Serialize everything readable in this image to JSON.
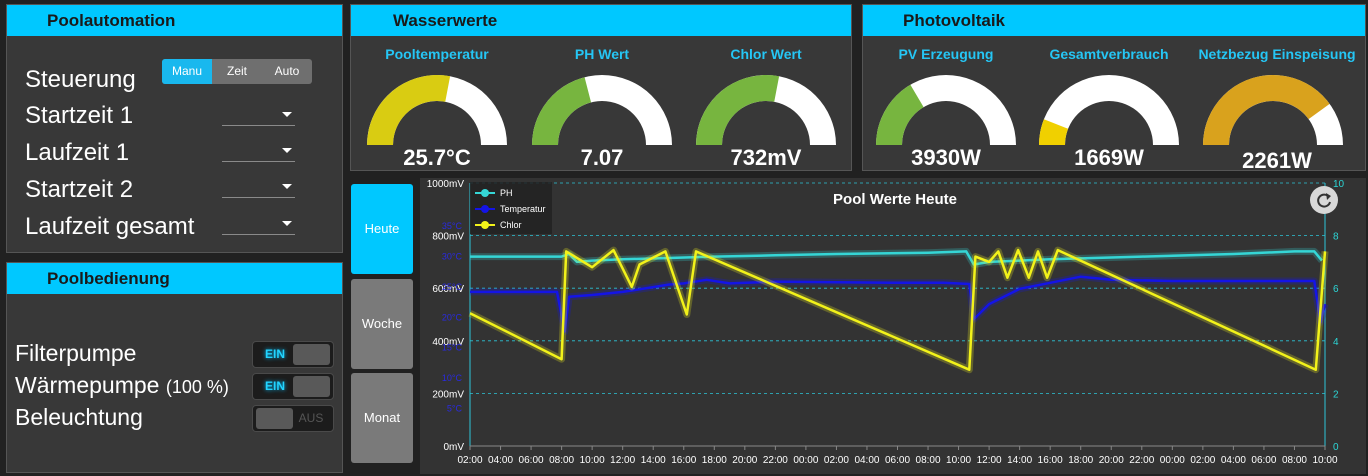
{
  "automation": {
    "title": "Poolautomation",
    "steuerung_label": "Steuerung",
    "modes": [
      "Manu",
      "Zeit",
      "Auto"
    ],
    "active_mode": "Manu",
    "rows": [
      {
        "label": "Startzeit 1",
        "value": ""
      },
      {
        "label": "Laufzeit 1",
        "value": ""
      },
      {
        "label": "Startzeit 2",
        "value": ""
      },
      {
        "label": "Laufzeit gesamt",
        "value": ""
      }
    ]
  },
  "bedienung": {
    "title": "Poolbedienung",
    "filter": {
      "label": "Filterpumpe",
      "state": "EIN"
    },
    "waerme": {
      "label": "Wärmepumpe",
      "extra": "(100 %)",
      "state": "EIN"
    },
    "licht": {
      "label": "Beleuchtung",
      "state": "AUS"
    }
  },
  "wasser": {
    "title": "Wasserwerte",
    "gauges": [
      {
        "title": "Pooltemperatur",
        "value": "25.7°C",
        "fill": 0.56,
        "color": "#d9cc12"
      },
      {
        "title": "PH Wert",
        "value": "7.07",
        "fill": 0.42,
        "color": "#77b53f"
      },
      {
        "title": "Chlor Wert",
        "value": "732mV",
        "fill": 0.56,
        "color": "#77b53f"
      }
    ]
  },
  "pv": {
    "title": "Photovoltaik",
    "gauges": [
      {
        "title": "PV Erzeugung",
        "value": "3930W",
        "fill": 0.33,
        "color": "#77b53f"
      },
      {
        "title": "Gesamtverbrauch",
        "value": "1669W",
        "fill": 0.12,
        "color": "#f0d000"
      },
      {
        "title": "Netzbezug Einspeisung",
        "value": "2261W",
        "fill": 0.8,
        "color": "#d9a21d"
      }
    ]
  },
  "periods": [
    "Heute",
    "Woche",
    "Monat"
  ],
  "active_period": "Heute",
  "icons": {
    "refresh": "refresh-icon",
    "caret": "caret-down-icon"
  },
  "chart_data": {
    "type": "line",
    "title": "Pool Werte Heute",
    "legend": [
      "PH",
      "Temperatur",
      "Chlor"
    ],
    "legend_position": "top-left",
    "colors": {
      "PH": "#35d6d6",
      "Temperatur": "#1414e6",
      "Chlor": "#f2f21a"
    },
    "x_ticks": [
      "02:00",
      "04:00",
      "06:00",
      "08:00",
      "10:00",
      "12:00",
      "14:00",
      "16:00",
      "18:00",
      "20:00",
      "22:00",
      "00:00",
      "02:00",
      "04:00",
      "06:00",
      "08:00",
      "10:00",
      "12:00",
      "14:00",
      "16:00",
      "18:00",
      "20:00",
      "22:00",
      "00:00",
      "02:00",
      "04:00",
      "06:00",
      "08:00",
      "10:00"
    ],
    "y_left_ticks": [
      "0mV",
      "200mV",
      "400mV",
      "600mV",
      "800mV",
      "1000mV"
    ],
    "y_left_range": [
      0,
      1000
    ],
    "y_temp_ticks": [
      "5°C",
      "10°C",
      "15°C",
      "20°C",
      "25°C",
      "30°C",
      "35°C"
    ],
    "y_right_ticks": [
      "0",
      "2",
      "4",
      "6",
      "8",
      "10"
    ],
    "y_right_range": [
      0,
      10
    ],
    "grid": true,
    "x_range_hours": [
      2,
      58
    ],
    "series": [
      {
        "name": "PH",
        "axis": "right",
        "points": [
          [
            2,
            7.2
          ],
          [
            8,
            7.2
          ],
          [
            8.5,
            7.3
          ],
          [
            9,
            7.0
          ],
          [
            10,
            7.05
          ],
          [
            12,
            7.1
          ],
          [
            15,
            7.15
          ],
          [
            18,
            7.2
          ],
          [
            22,
            7.25
          ],
          [
            26,
            7.3
          ],
          [
            32,
            7.35
          ],
          [
            34.5,
            7.4
          ],
          [
            35,
            6.9
          ],
          [
            36,
            7.0
          ],
          [
            40,
            7.1
          ],
          [
            46,
            7.2
          ],
          [
            52,
            7.3
          ],
          [
            56,
            7.4
          ],
          [
            57.3,
            7.4
          ],
          [
            57.8,
            7.05
          ]
        ]
      },
      {
        "name": "Temperatur",
        "axis": "temp",
        "points": [
          [
            2,
            24.0
          ],
          [
            7.7,
            24.0
          ],
          [
            8.2,
            17.5
          ],
          [
            8.5,
            23.2
          ],
          [
            10,
            23.5
          ],
          [
            12,
            24.0
          ],
          [
            14,
            24.8
          ],
          [
            15,
            25.2
          ],
          [
            16,
            25.4
          ],
          [
            17.5,
            26.0
          ],
          [
            19,
            25.4
          ],
          [
            22,
            25.7
          ],
          [
            26,
            25.6
          ],
          [
            30,
            25.5
          ],
          [
            33,
            25.5
          ],
          [
            34.7,
            25.3
          ],
          [
            35,
            19.5
          ],
          [
            36,
            22.0
          ],
          [
            38,
            24.5
          ],
          [
            40,
            25.5
          ],
          [
            42,
            26.5
          ],
          [
            44,
            26.0
          ],
          [
            48,
            25.8
          ],
          [
            52,
            25.8
          ],
          [
            56,
            25.8
          ],
          [
            57.3,
            25.8
          ],
          [
            57.7,
            19.0
          ],
          [
            58,
            22.0
          ]
        ]
      },
      {
        "name": "Chlor",
        "axis": "left",
        "points": [
          [
            2,
            505
          ],
          [
            8,
            330
          ],
          [
            8.3,
            740
          ],
          [
            10,
            680
          ],
          [
            11.4,
            745
          ],
          [
            12.6,
            605
          ],
          [
            13.1,
            690
          ],
          [
            14.8,
            740
          ],
          [
            16.2,
            500
          ],
          [
            16.8,
            740
          ],
          [
            34.7,
            290
          ],
          [
            35.1,
            720
          ],
          [
            36,
            700
          ],
          [
            36.6,
            740
          ],
          [
            37.2,
            640
          ],
          [
            37.9,
            745
          ],
          [
            38.6,
            640
          ],
          [
            39.2,
            740
          ],
          [
            39.8,
            640
          ],
          [
            40.5,
            745
          ],
          [
            57.4,
            290
          ],
          [
            58,
            740
          ]
        ]
      }
    ]
  }
}
